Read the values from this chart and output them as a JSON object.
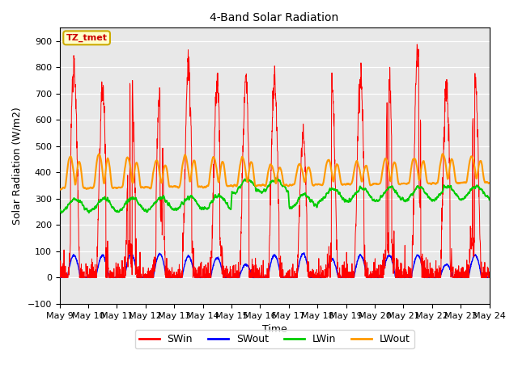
{
  "title": "4-Band Solar Radiation",
  "xlabel": "Time",
  "ylabel": "Solar Radiation (W/m2)",
  "annotation": "TZ_tmet",
  "ylim": [
    -100,
    950
  ],
  "n_days": 15,
  "x_tick_labels": [
    "May 9",
    "May 10",
    "May 11",
    "May 12",
    "May 13",
    "May 14",
    "May 15",
    "May 16",
    "May 17",
    "May 18",
    "May 19",
    "May 20",
    "May 21",
    "May 22",
    "May 23",
    "May 24"
  ],
  "colors": {
    "SWin": "#ff0000",
    "SWout": "#0000ff",
    "LWin": "#00cc00",
    "LWout": "#ff9900",
    "background": "#e8e8e8",
    "annotation_bg": "#ffffcc",
    "annotation_border": "#ccaa00",
    "annotation_text": "#cc0000"
  },
  "swin_peaks": [
    810,
    710,
    760,
    700,
    810,
    740,
    760,
    750,
    550,
    720,
    775,
    760,
    875,
    720,
    755
  ],
  "swout_peaks": [
    85,
    85,
    90,
    90,
    80,
    75,
    50,
    85,
    90,
    70,
    85,
    85,
    85,
    50,
    85
  ],
  "lwin_base": 275,
  "lwout_base": 340,
  "legend_labels": [
    "SWin",
    "SWout",
    "LWin",
    "LWout"
  ]
}
